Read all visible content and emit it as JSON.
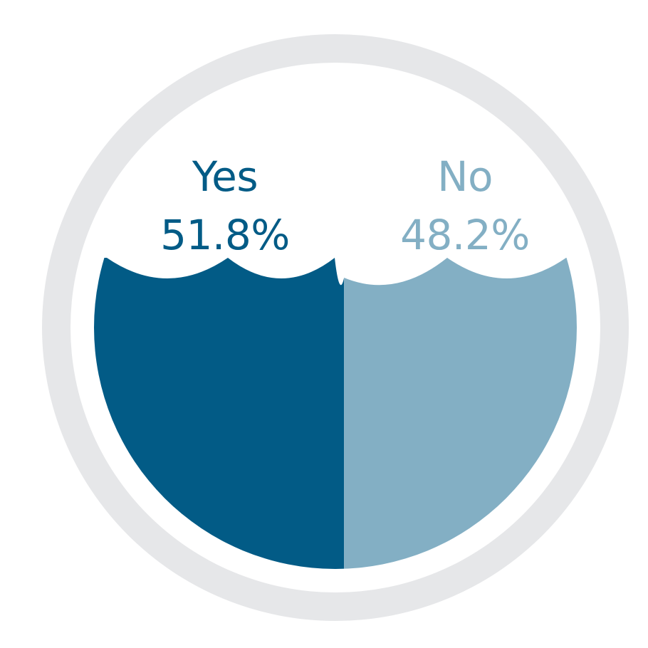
{
  "chart_data": {
    "type": "pie",
    "categories": [
      "Yes",
      "No"
    ],
    "values": [
      51.8,
      48.2
    ],
    "value_labels": [
      "51.8%",
      "48.2%"
    ],
    "colors": [
      "#025B86",
      "#83AFC4"
    ],
    "ring_color": "#E6E7E9",
    "background": "#FFFFFF",
    "style": "water-filled circle split into two halves"
  }
}
